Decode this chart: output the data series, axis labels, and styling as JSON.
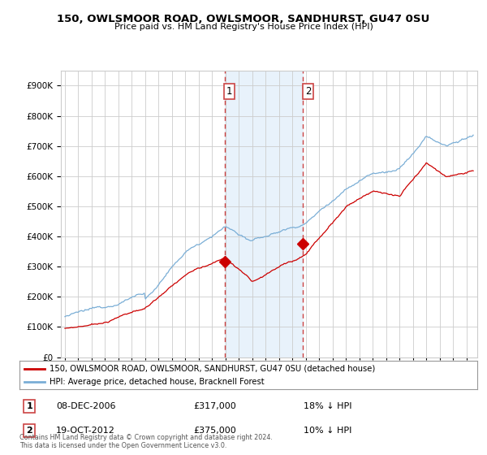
{
  "title": "150, OWLSMOOR ROAD, OWLSMOOR, SANDHURST, GU47 0SU",
  "subtitle": "Price paid vs. HM Land Registry's House Price Index (HPI)",
  "ylim": [
    0,
    950000
  ],
  "yticks": [
    0,
    100000,
    200000,
    300000,
    400000,
    500000,
    600000,
    700000,
    800000,
    900000
  ],
  "ytick_labels": [
    "£0",
    "£100K",
    "£200K",
    "£300K",
    "£400K",
    "£500K",
    "£600K",
    "£700K",
    "£800K",
    "£900K"
  ],
  "red_line_label": "150, OWLSMOOR ROAD, OWLSMOOR, SANDHURST, GU47 0SU (detached house)",
  "blue_line_label": "HPI: Average price, detached house, Bracknell Forest",
  "annotation1_label": "1",
  "annotation1_date": "08-DEC-2006",
  "annotation1_price": "£317,000",
  "annotation1_hpi": "18% ↓ HPI",
  "annotation1_year": 2006.92,
  "annotation1_value": 317000,
  "annotation2_label": "2",
  "annotation2_date": "19-OCT-2012",
  "annotation2_price": "£375,000",
  "annotation2_hpi": "10% ↓ HPI",
  "annotation2_year": 2012.79,
  "annotation2_value": 375000,
  "red_color": "#cc0000",
  "blue_color": "#7aaed6",
  "highlight_color": "#e8f2fb",
  "vline_color": "#cc4444",
  "grid_color": "#cccccc",
  "footer_text": "Contains HM Land Registry data © Crown copyright and database right 2024.\nThis data is licensed under the Open Government Licence v3.0.",
  "background_color": "#ffffff"
}
